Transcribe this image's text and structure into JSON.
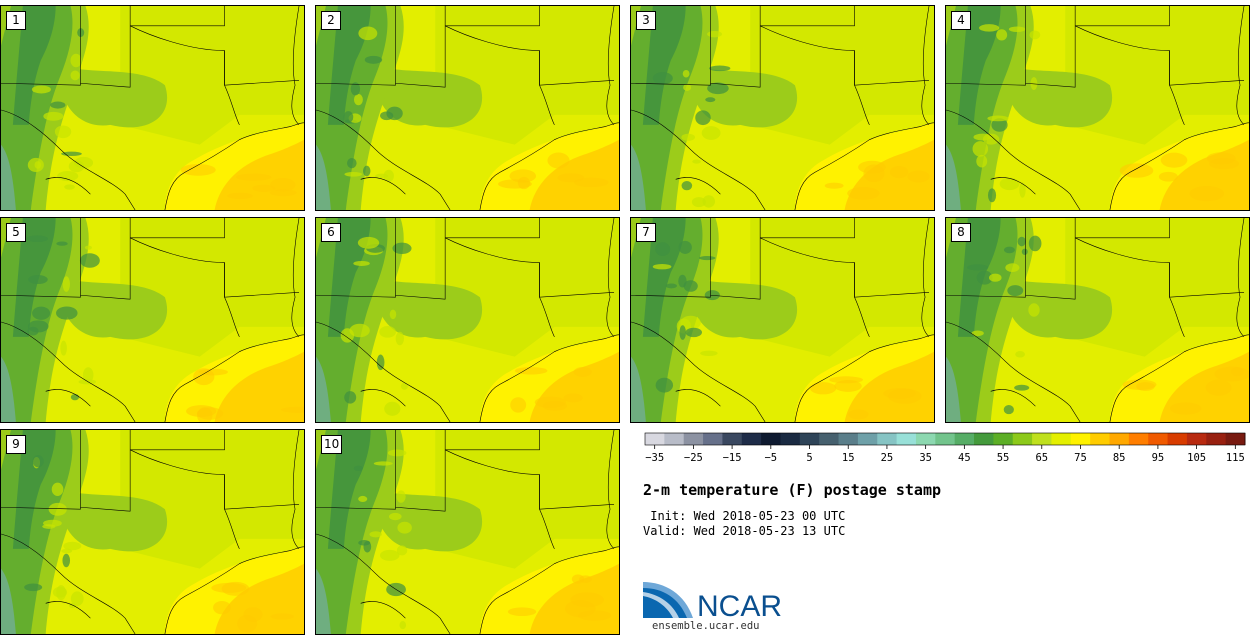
{
  "panels": [
    {
      "label": "1"
    },
    {
      "label": "2"
    },
    {
      "label": "3"
    },
    {
      "label": "4"
    },
    {
      "label": "5"
    },
    {
      "label": "6"
    },
    {
      "label": "7"
    },
    {
      "label": "8"
    },
    {
      "label": "9"
    },
    {
      "label": "10"
    }
  ],
  "colorbar": {
    "colors": [
      "#d8d8e0",
      "#b8bcc8",
      "#8c92a2",
      "#66708a",
      "#3a4860",
      "#1e2c48",
      "#0e1a30",
      "#1a2a42",
      "#2e4458",
      "#46606e",
      "#5a7e8a",
      "#6ea0a8",
      "#86c4c4",
      "#98e0d8",
      "#8cd8b0",
      "#72c48c",
      "#56ad66",
      "#449a3c",
      "#5cae26",
      "#8cc91a",
      "#bfe01e",
      "#e4ef00",
      "#fff200",
      "#ffcc00",
      "#ffa800",
      "#ff7e00",
      "#f05a00",
      "#d83c00",
      "#b82a10",
      "#982010",
      "#781a10"
    ],
    "tick_labels": [
      "−35",
      "−25",
      "−15",
      "−5",
      "5",
      "15",
      "25",
      "35",
      "45",
      "55",
      "65",
      "75",
      "85",
      "95",
      "105",
      "115"
    ]
  },
  "title": "2-m temperature (F) postage stamp",
  "init_line": " Init: Wed 2018-05-23 00 UTC",
  "valid_line": "Valid: Wed 2018-05-23 13 UTC",
  "logo_text": "NCAR",
  "url": "ensemble.ucar.edu",
  "map_colors": {
    "land_warm": "#e3ee00",
    "land_mid": "#c8e400",
    "land_cool": "#9ccc1a",
    "mountain": "#5aa832",
    "peak": "#3e9040",
    "valley": "#6fae80",
    "gulf": "#fff200",
    "gulf_warm": "#ffcc00",
    "border": "#000000"
  }
}
